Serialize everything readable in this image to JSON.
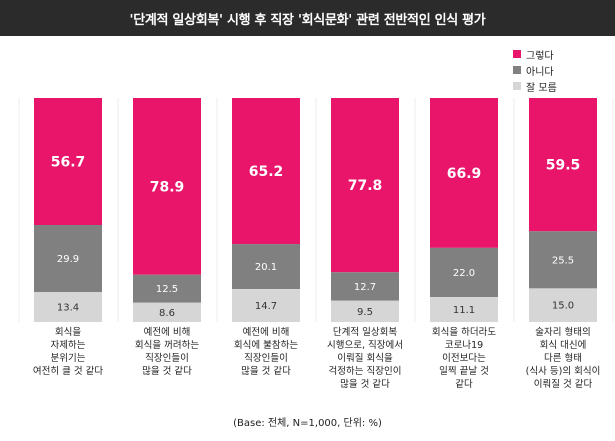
{
  "title": "'단계적 일상회복' 시행 후 직장 '회식문화' 관련 전반적인 인식 평가",
  "footnote": "(Base: 전체, N=1,000, 단위: %)",
  "colors": {
    "title_bg": "#2b2b2b",
    "yes": "#e8156b",
    "no": "#808080",
    "unknown": "#d6d6d6"
  },
  "chart_data": {
    "type": "bar",
    "stacked": true,
    "categories": [
      [
        "회식을",
        "자제하는",
        "분위기는",
        "여전히 클 것 같다"
      ],
      [
        "예전에 비해",
        "회식을 꺼려하는",
        "직장인들이",
        "많을 것 같다"
      ],
      [
        "예전에 비해",
        "회식에 불참하는",
        "직장인들이",
        "많을 것 같다"
      ],
      [
        "단계적 일상회복",
        "시행으로, 직장에서",
        "이뤄질 회식을",
        "걱정하는 직장인이",
        "많을 것 같다"
      ],
      [
        "회식을 하더라도",
        "코로나19",
        "이전보다는",
        "일찍 끝날 것",
        "같다"
      ],
      [
        "술자리 형태의",
        "회식 대신에",
        "다른 형태",
        "(식사 등)의 회식이",
        "이뤄질 것 같다"
      ]
    ],
    "series": [
      {
        "name": "그렇다",
        "values": [
          "56.7",
          "78.9",
          "65.2",
          "77.8",
          "66.9",
          "59.5"
        ]
      },
      {
        "name": "아니다",
        "values": [
          "29.9",
          "12.5",
          "20.1",
          "12.7",
          "22.0",
          "25.5"
        ]
      },
      {
        "name": "잘 모름",
        "values": [
          "13.4",
          "8.6",
          "14.7",
          "9.5",
          "11.1",
          "15.0"
        ]
      }
    ],
    "legend_position": "top-right",
    "ylim": [
      0,
      100
    ]
  }
}
